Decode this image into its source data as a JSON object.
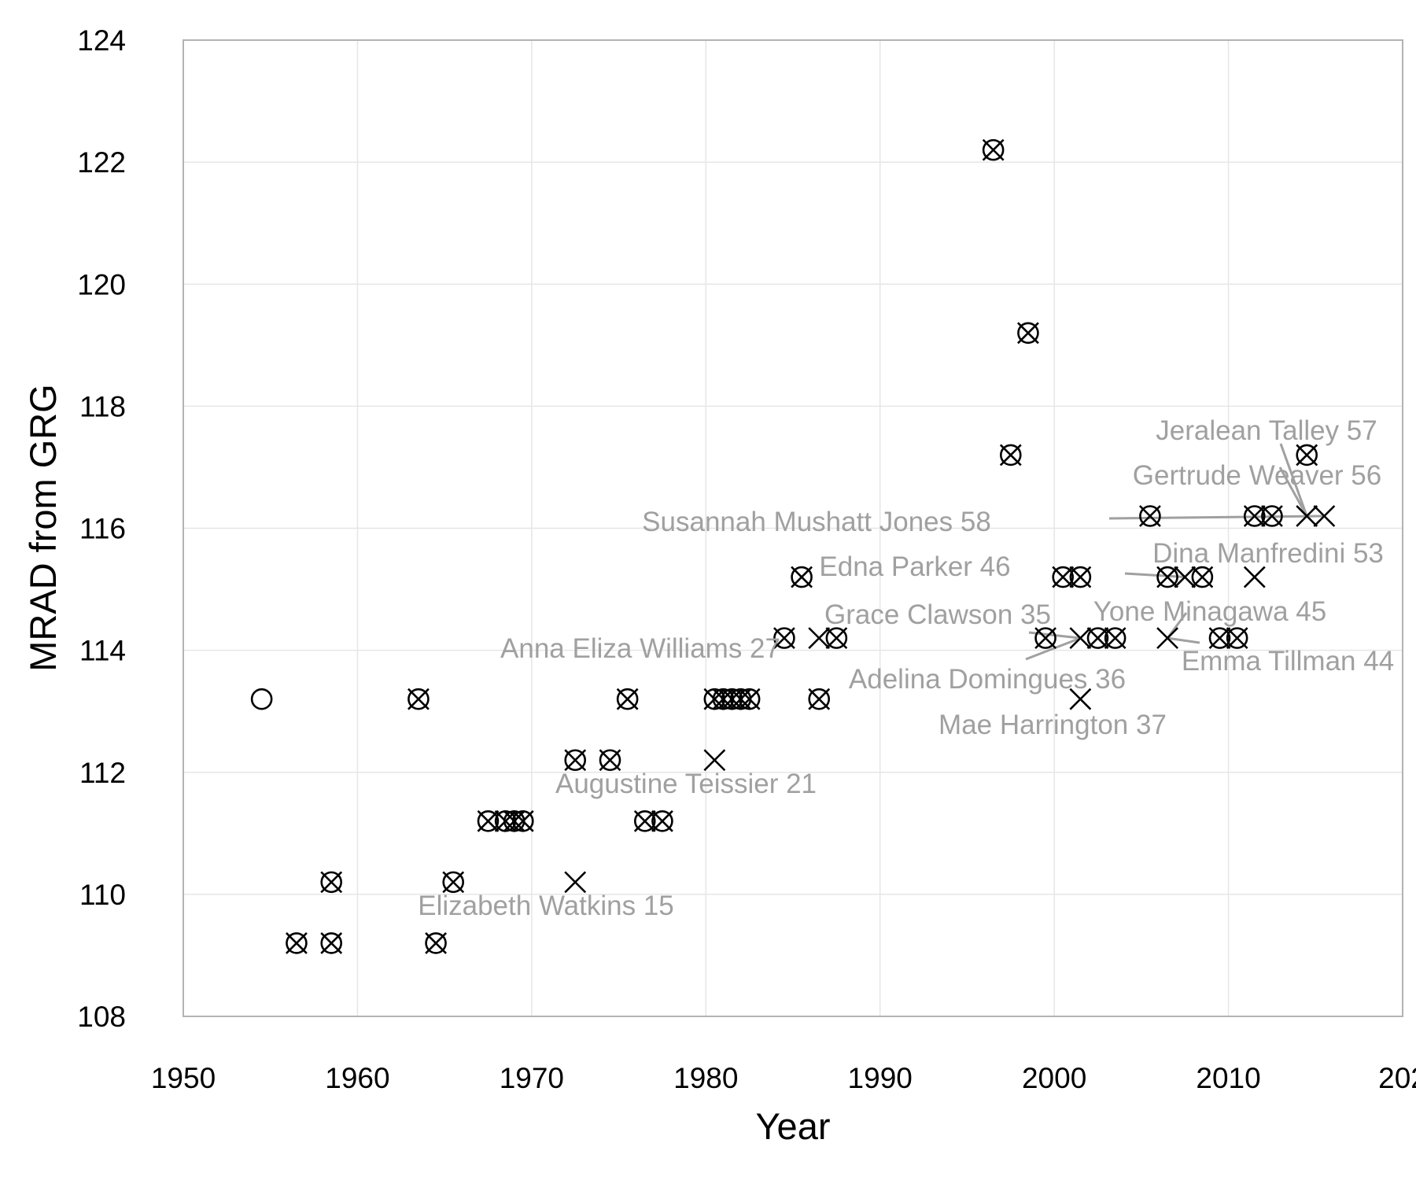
{
  "chart_data": {
    "type": "scatter",
    "xlabel": "Year",
    "ylabel": "MRAD from GRG",
    "xlim": [
      1950,
      2020
    ],
    "ylim": [
      108,
      124
    ],
    "x_ticks": [
      "1950",
      "1960",
      "1970",
      "1980",
      "1990",
      "2000",
      "2010",
      "202"
    ],
    "y_ticks": [
      "108",
      "110",
      "112",
      "114",
      "116",
      "118",
      "120",
      "122",
      "124"
    ],
    "grid": true,
    "legend": "none",
    "marker_types": {
      "o": "circle",
      "x": "cross",
      "ox": "circle-with-cross"
    },
    "points": [
      {
        "x": 1954.5,
        "y": 113.2,
        "m": "o"
      },
      {
        "x": 1956.5,
        "y": 109.2,
        "m": "ox"
      },
      {
        "x": 1958.5,
        "y": 109.2,
        "m": "ox"
      },
      {
        "x": 1958.5,
        "y": 110.2,
        "m": "ox"
      },
      {
        "x": 1963.5,
        "y": 113.2,
        "m": "ox"
      },
      {
        "x": 1964.5,
        "y": 109.2,
        "m": "ox"
      },
      {
        "x": 1965.5,
        "y": 110.2,
        "m": "ox"
      },
      {
        "x": 1967.5,
        "y": 111.2,
        "m": "ox"
      },
      {
        "x": 1968.5,
        "y": 111.2,
        "m": "ox"
      },
      {
        "x": 1969.0,
        "y": 111.2,
        "m": "ox"
      },
      {
        "x": 1969.5,
        "y": 111.2,
        "m": "ox"
      },
      {
        "x": 1972.5,
        "y": 112.2,
        "m": "ox"
      },
      {
        "x": 1972.5,
        "y": 110.2,
        "m": "x"
      },
      {
        "x": 1974.5,
        "y": 112.2,
        "m": "ox"
      },
      {
        "x": 1975.5,
        "y": 113.2,
        "m": "ox"
      },
      {
        "x": 1976.5,
        "y": 111.2,
        "m": "ox"
      },
      {
        "x": 1977.5,
        "y": 111.2,
        "m": "ox"
      },
      {
        "x": 1980.5,
        "y": 113.2,
        "m": "ox"
      },
      {
        "x": 1980.5,
        "y": 112.2,
        "m": "x"
      },
      {
        "x": 1981.0,
        "y": 113.2,
        "m": "ox"
      },
      {
        "x": 1981.5,
        "y": 113.2,
        "m": "ox"
      },
      {
        "x": 1982.0,
        "y": 113.2,
        "m": "ox"
      },
      {
        "x": 1982.5,
        "y": 113.2,
        "m": "ox"
      },
      {
        "x": 1984.5,
        "y": 114.2,
        "m": "ox"
      },
      {
        "x": 1985.5,
        "y": 115.2,
        "m": "ox"
      },
      {
        "x": 1986.5,
        "y": 114.2,
        "m": "x"
      },
      {
        "x": 1986.5,
        "y": 113.2,
        "m": "ox"
      },
      {
        "x": 1987.5,
        "y": 114.2,
        "m": "ox"
      },
      {
        "x": 1996.5,
        "y": 122.2,
        "m": "ox"
      },
      {
        "x": 1997.5,
        "y": 117.2,
        "m": "ox"
      },
      {
        "x": 1998.5,
        "y": 119.2,
        "m": "ox"
      },
      {
        "x": 1999.5,
        "y": 114.2,
        "m": "ox"
      },
      {
        "x": 2000.5,
        "y": 115.2,
        "m": "ox"
      },
      {
        "x": 2001.5,
        "y": 115.2,
        "m": "ox"
      },
      {
        "x": 2001.5,
        "y": 114.2,
        "m": "x"
      },
      {
        "x": 2001.5,
        "y": 113.2,
        "m": "x"
      },
      {
        "x": 2002.5,
        "y": 114.2,
        "m": "ox"
      },
      {
        "x": 2003.5,
        "y": 114.2,
        "m": "ox"
      },
      {
        "x": 2005.5,
        "y": 116.2,
        "m": "ox"
      },
      {
        "x": 2006.5,
        "y": 115.2,
        "m": "ox"
      },
      {
        "x": 2006.5,
        "y": 114.2,
        "m": "x"
      },
      {
        "x": 2007.5,
        "y": 115.2,
        "m": "x"
      },
      {
        "x": 2008.5,
        "y": 115.2,
        "m": "ox"
      },
      {
        "x": 2009.5,
        "y": 114.2,
        "m": "ox"
      },
      {
        "x": 2010.5,
        "y": 114.2,
        "m": "ox"
      },
      {
        "x": 2011.5,
        "y": 116.2,
        "m": "ox"
      },
      {
        "x": 2011.5,
        "y": 115.2,
        "m": "x"
      },
      {
        "x": 2012.5,
        "y": 116.2,
        "m": "ox"
      },
      {
        "x": 2014.5,
        "y": 117.2,
        "m": "ox"
      },
      {
        "x": 2014.5,
        "y": 116.2,
        "m": "x"
      },
      {
        "x": 2015.5,
        "y": 116.2,
        "m": "x"
      }
    ],
    "annotations": [
      {
        "text": "Elizabeth Watkins 15",
        "x": 1972.5,
        "y": 110.2
      },
      {
        "text": "Augustine Teissier 21",
        "x": 1980.5,
        "y": 112.2
      },
      {
        "text": "Anna Eliza Williams 27",
        "x": 1986.5,
        "y": 114.2
      },
      {
        "text": "Grace Clawson 35",
        "x": 2001.5,
        "y": 114.2
      },
      {
        "text": "Adelina Domingues 36",
        "x": 2001.5,
        "y": 114.2
      },
      {
        "text": "Mae Harrington 37",
        "x": 2001.5,
        "y": 113.2
      },
      {
        "text": "Emma Tillman 44",
        "x": 2006.5,
        "y": 114.2
      },
      {
        "text": "Yone Minagawa 45",
        "x": 2006.5,
        "y": 114.2
      },
      {
        "text": "Edna Parker 46",
        "x": 2007.5,
        "y": 115.2
      },
      {
        "text": "Dina Manfredini 53",
        "x": 2011.5,
        "y": 115.2
      },
      {
        "text": "Gertrude Weaver 56",
        "x": 2014.5,
        "y": 116.2
      },
      {
        "text": "Jeralean Talley 57",
        "x": 2014.5,
        "y": 116.2
      },
      {
        "text": "Susannah Mushatt Jones 58",
        "x": 2015.5,
        "y": 116.2
      }
    ]
  }
}
